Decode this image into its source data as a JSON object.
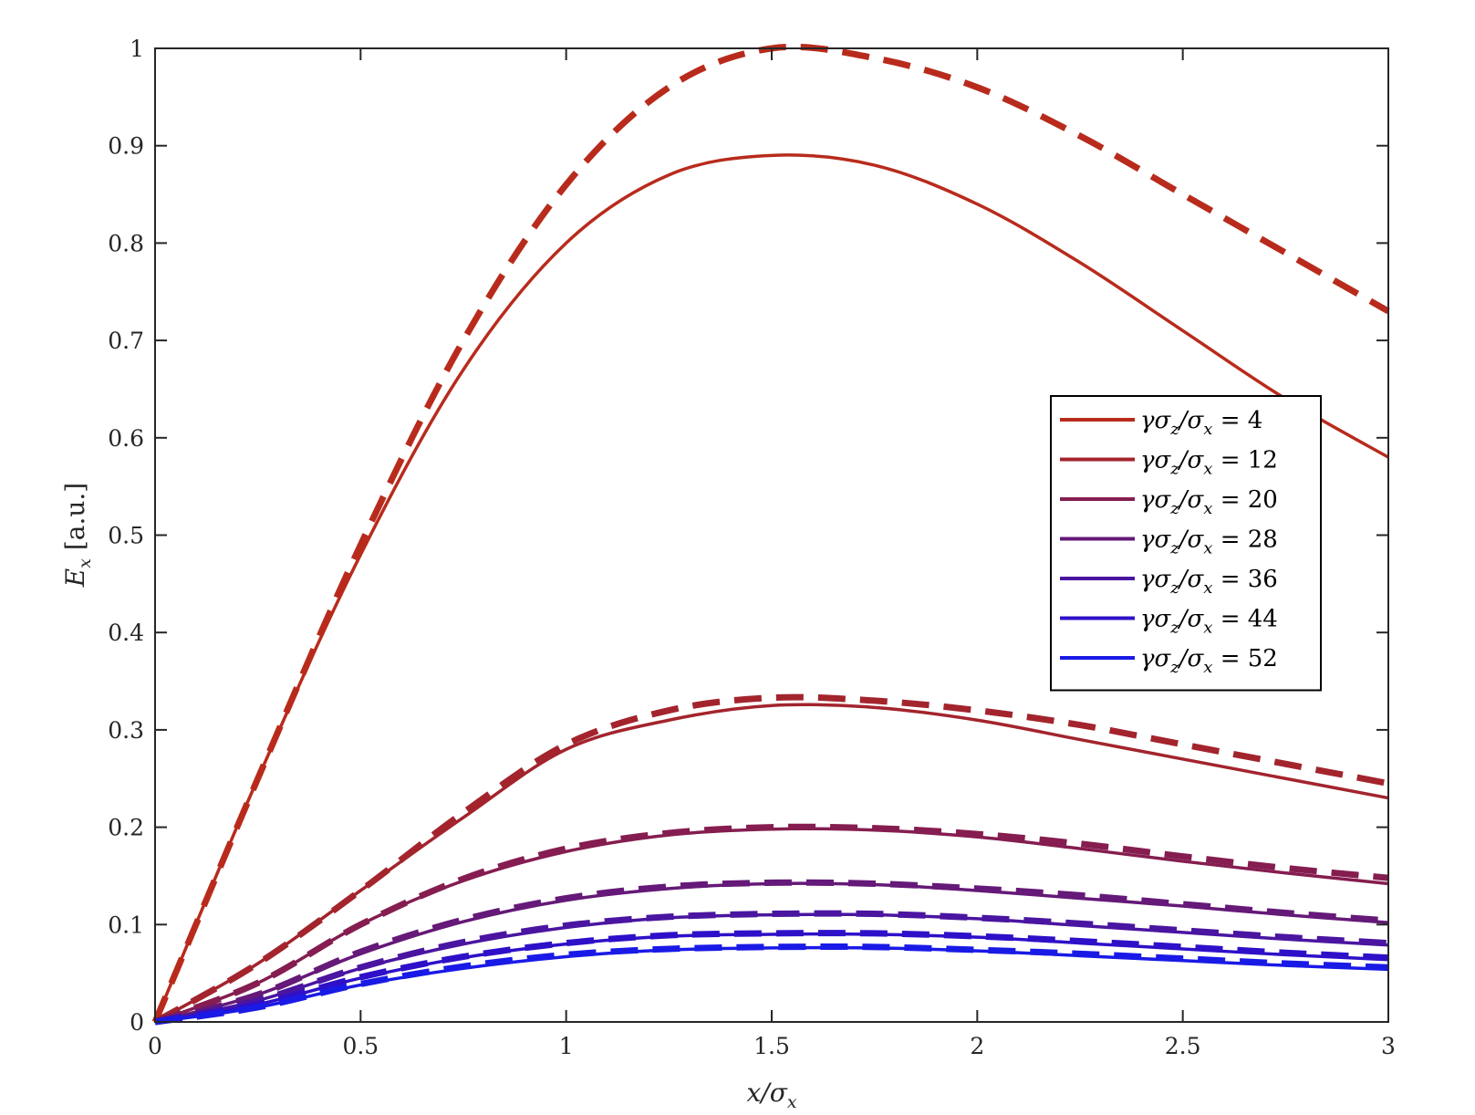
{
  "chart_data": {
    "type": "line",
    "xlabel": "x/σ_x",
    "ylabel": "E_x [a.u.]",
    "xlim": [
      0,
      3
    ],
    "ylim": [
      0,
      1
    ],
    "x_ticks": [
      "0",
      "0.5",
      "1",
      "1.5",
      "2",
      "2.5",
      "3"
    ],
    "y_ticks": [
      "0",
      "0.1",
      "0.2",
      "0.3",
      "0.4",
      "0.5",
      "0.6",
      "0.7",
      "0.8",
      "0.9",
      "1"
    ],
    "grid": false,
    "legend_position": "right-middle",
    "legend_note": "solid lines listed in legend; dashed lines of same colour are unlabelled approximations",
    "x": [
      0,
      0.25,
      0.5,
      0.75,
      1.0,
      1.25,
      1.5,
      1.75,
      2.0,
      2.25,
      2.5,
      2.75,
      3.0
    ],
    "series": [
      {
        "name": "γσ_z/σ_x = 4",
        "color": "#b82b1c",
        "style": "solid",
        "values": [
          0,
          0.25,
          0.48,
          0.67,
          0.8,
          0.87,
          0.89,
          0.88,
          0.84,
          0.78,
          0.71,
          0.64,
          0.58
        ]
      },
      {
        "name": "",
        "color": "#b82b1c",
        "style": "dashed",
        "values": [
          0,
          0.25,
          0.49,
          0.7,
          0.86,
          0.96,
          1.0,
          0.99,
          0.96,
          0.91,
          0.85,
          0.79,
          0.73
        ]
      },
      {
        "name": "γσ_z/σ_x = 12",
        "color": "#a3242d",
        "style": "solid",
        "values": [
          0,
          0.06,
          0.135,
          0.21,
          0.28,
          0.31,
          0.325,
          0.323,
          0.31,
          0.29,
          0.27,
          0.25,
          0.23
        ]
      },
      {
        "name": "",
        "color": "#a3242d",
        "style": "dashed",
        "values": [
          0,
          0.06,
          0.135,
          0.215,
          0.285,
          0.32,
          0.333,
          0.33,
          0.32,
          0.305,
          0.285,
          0.265,
          0.245
        ]
      },
      {
        "name": "γσ_z/σ_x = 20",
        "color": "#851d50",
        "style": "solid",
        "values": [
          0,
          0.04,
          0.1,
          0.145,
          0.175,
          0.192,
          0.198,
          0.197,
          0.19,
          0.178,
          0.165,
          0.153,
          0.142
        ]
      },
      {
        "name": "",
        "color": "#851d50",
        "style": "dashed",
        "values": [
          0,
          0.04,
          0.1,
          0.147,
          0.178,
          0.194,
          0.2,
          0.199,
          0.193,
          0.183,
          0.17,
          0.158,
          0.148
        ]
      },
      {
        "name": "γσ_z/σ_x = 28",
        "color": "#651978",
        "style": "solid",
        "values": [
          0,
          0.028,
          0.07,
          0.103,
          0.125,
          0.137,
          0.142,
          0.141,
          0.135,
          0.127,
          0.119,
          0.11,
          0.102
        ]
      },
      {
        "name": "",
        "color": "#651978",
        "style": "dashed",
        "values": [
          0,
          0.028,
          0.072,
          0.105,
          0.127,
          0.139,
          0.143,
          0.142,
          0.137,
          0.13,
          0.121,
          0.112,
          0.104
        ]
      },
      {
        "name": "γσ_z/σ_x = 36",
        "color": "#4a15a0",
        "style": "solid",
        "values": [
          0,
          0.022,
          0.055,
          0.08,
          0.097,
          0.107,
          0.11,
          0.11,
          0.106,
          0.099,
          0.092,
          0.085,
          0.079
        ]
      },
      {
        "name": "",
        "color": "#4a15a0",
        "style": "dashed",
        "values": [
          0,
          0.022,
          0.056,
          0.082,
          0.099,
          0.108,
          0.111,
          0.111,
          0.107,
          0.101,
          0.094,
          0.087,
          0.081
        ]
      },
      {
        "name": "γσ_z/σ_x = 44",
        "color": "#2f10c8",
        "style": "solid",
        "values": [
          0,
          0.018,
          0.045,
          0.066,
          0.08,
          0.088,
          0.09,
          0.09,
          0.087,
          0.081,
          0.075,
          0.069,
          0.064
        ]
      },
      {
        "name": "",
        "color": "#2f10c8",
        "style": "dashed",
        "values": [
          0,
          0.018,
          0.046,
          0.067,
          0.081,
          0.089,
          0.091,
          0.091,
          0.088,
          0.083,
          0.077,
          0.071,
          0.066
        ]
      },
      {
        "name": "γσ_z/σ_x = 52",
        "color": "#1a1ae6",
        "style": "solid",
        "values": [
          0,
          0.015,
          0.038,
          0.055,
          0.067,
          0.074,
          0.076,
          0.076,
          0.073,
          0.068,
          0.063,
          0.058,
          0.054
        ]
      },
      {
        "name": "",
        "color": "#1a1ae6",
        "style": "dashed",
        "values": [
          0,
          0.015,
          0.039,
          0.057,
          0.069,
          0.075,
          0.077,
          0.077,
          0.074,
          0.07,
          0.065,
          0.06,
          0.056
        ]
      }
    ]
  }
}
